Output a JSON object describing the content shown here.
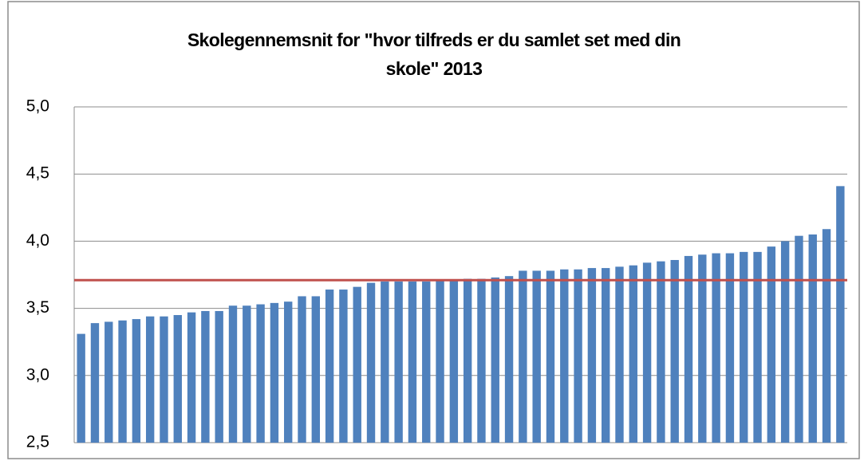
{
  "chart_data": {
    "type": "bar",
    "title": "Skolegennemsnit for \"hvor tilfreds er du samlet set med din\nskole\" 2013",
    "values": [
      3.31,
      3.39,
      3.4,
      3.41,
      3.42,
      3.44,
      3.44,
      3.45,
      3.47,
      3.48,
      3.48,
      3.52,
      3.52,
      3.53,
      3.54,
      3.55,
      3.59,
      3.59,
      3.64,
      3.64,
      3.66,
      3.69,
      3.7,
      3.7,
      3.7,
      3.7,
      3.71,
      3.71,
      3.72,
      3.72,
      3.73,
      3.74,
      3.78,
      3.78,
      3.78,
      3.79,
      3.79,
      3.8,
      3.8,
      3.81,
      3.82,
      3.84,
      3.85,
      3.86,
      3.89,
      3.9,
      3.91,
      3.91,
      3.92,
      3.92,
      3.96,
      4.0,
      4.04,
      4.05,
      4.09,
      4.41
    ],
    "color": "#4f81bd",
    "reference_line": {
      "value": 3.71,
      "color": "#c0504d"
    },
    "ylim": [
      2.5,
      5.0
    ],
    "yticks": [
      {
        "value": 2.5,
        "label": "2,5"
      },
      {
        "value": 3.0,
        "label": "3,0"
      },
      {
        "value": 3.5,
        "label": "3,5"
      },
      {
        "value": 4.0,
        "label": "4,0"
      },
      {
        "value": 4.5,
        "label": "4,5"
      },
      {
        "value": 5.0,
        "label": "5,0"
      }
    ],
    "grid": true
  }
}
